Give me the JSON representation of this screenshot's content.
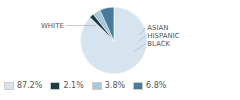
{
  "chart_data": {
    "type": "pie",
    "categories": [
      "WHITE",
      "ASIAN",
      "HISPANIC",
      "BLACK"
    ],
    "values": [
      87.2,
      2.1,
      3.8,
      6.8
    ],
    "value_labels": [
      "87.2%",
      "2.1%",
      "3.8%",
      "6.8%"
    ],
    "colors": [
      "#d6e4f0",
      "#1a3a4a",
      "#a8c8d8",
      "#4a7a9b"
    ],
    "legend": "bottom"
  }
}
